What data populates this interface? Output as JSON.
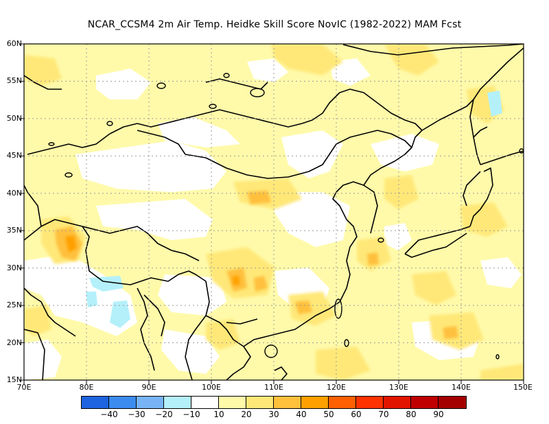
{
  "title": "NCAR_CCSM4  2m Air Temp. Heidke Skill Score NovIC (1982-2022) MAM Fcst",
  "lat_labels": [
    "60N",
    "55N",
    "50N",
    "45N",
    "40N",
    "35N",
    "30N",
    "25N",
    "20N",
    "15N"
  ],
  "lon_labels": [
    "70E",
    "80E",
    "90E",
    "100E",
    "110E",
    "120E",
    "130E",
    "140E",
    "150E"
  ],
  "colorbar": {
    "colors": [
      "#1e64e0",
      "#3c8cf0",
      "#78b4f5",
      "#b4f0fa",
      "#ffffff",
      "#fffaaa",
      "#ffe878",
      "#ffc03c",
      "#ffa000",
      "#ff6000",
      "#ff3200",
      "#e11400",
      "#c00000",
      "#a50000"
    ],
    "labels": [
      "-40",
      "-30",
      "-20",
      "-10",
      "10",
      "20",
      "30",
      "40",
      "50",
      "60",
      "70",
      "80",
      "90"
    ]
  },
  "map_extent": {
    "lon": [
      70,
      150
    ],
    "lat": [
      15,
      60
    ]
  }
}
